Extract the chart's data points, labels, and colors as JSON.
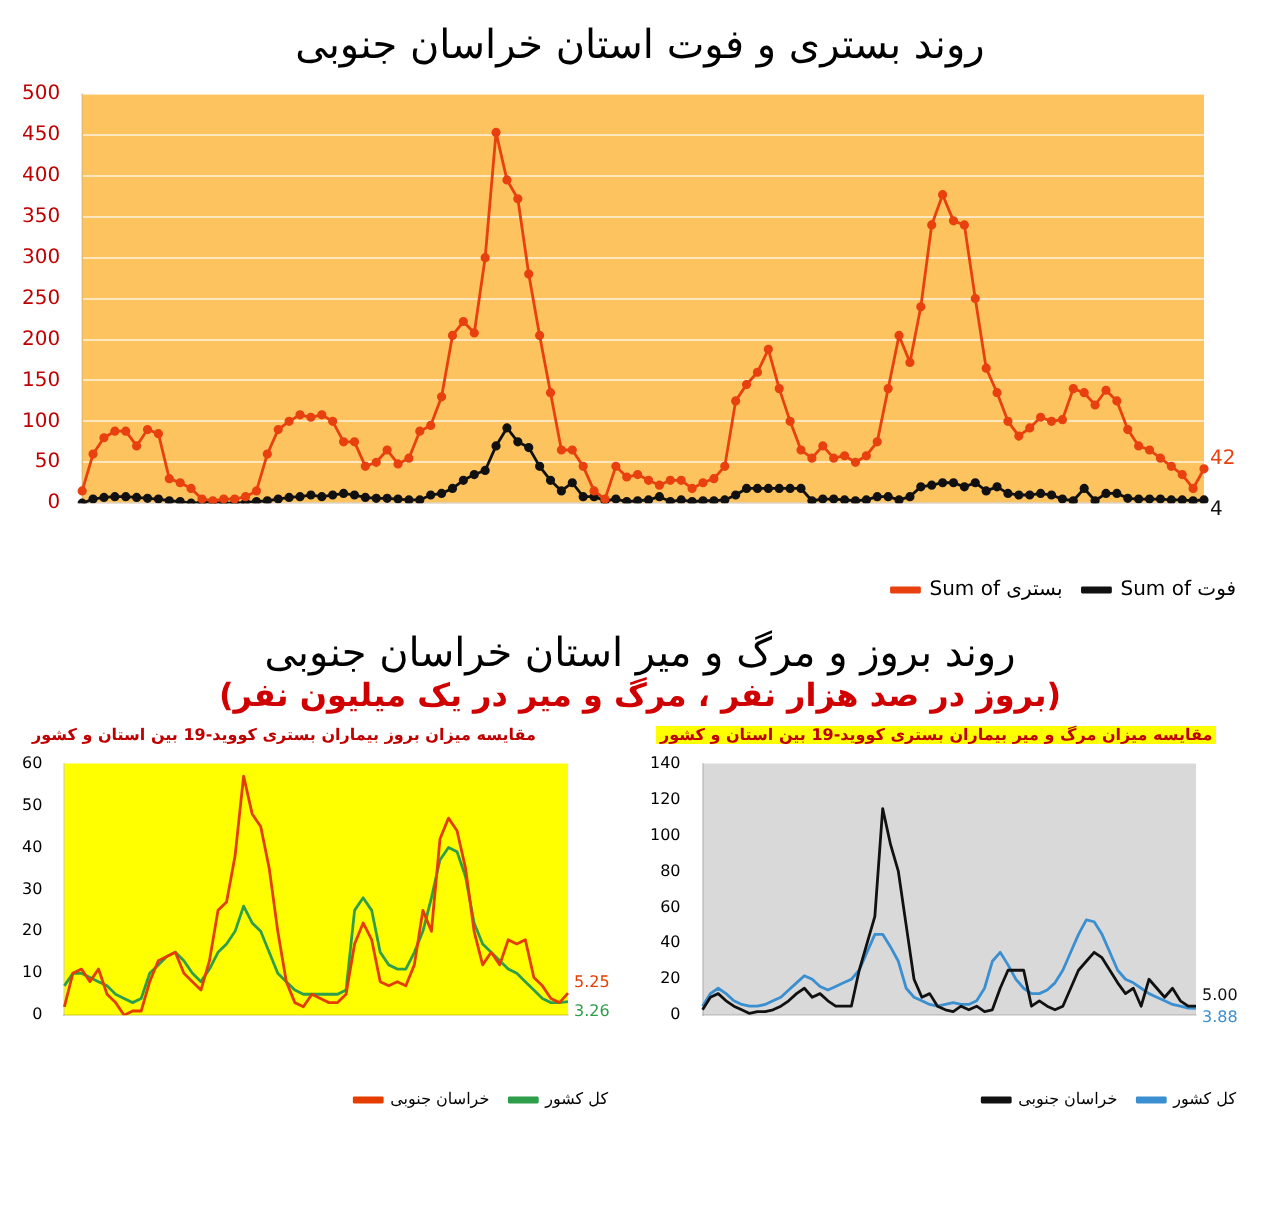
{
  "chart_data": [
    {
      "type": "line",
      "title": "روند بستری و فوت استان خراسان جنوبی",
      "categories": [
        null,
        null,
        null,
        null,
        null,
        null,
        null,
        null,
        null,
        null,
        null,
        null,
        null,
        null,
        null,
        null,
        null,
        null,
        null,
        null,
        null,
        null,
        null,
        null,
        null,
        null,
        null,
        null,
        null,
        null,
        null,
        null,
        null,
        null,
        null,
        null,
        null,
        null,
        null,
        null,
        null,
        null,
        null,
        null,
        null,
        null,
        null,
        null,
        null,
        null,
        null,
        null,
        null,
        null,
        null,
        null,
        null,
        null,
        null,
        null,
        null,
        null,
        null,
        null,
        null,
        null,
        null,
        null,
        null,
        null,
        null,
        null,
        null,
        null,
        null,
        null,
        null,
        null,
        null,
        null,
        null,
        null,
        null,
        null,
        null,
        null,
        null,
        null,
        null,
        null,
        null,
        null,
        null,
        null,
        null,
        null,
        null,
        null,
        null,
        null,
        null,
        null,
        null,
        null
      ],
      "series": [
        {
          "name": "Sum of بستری",
          "color": "#e8400f",
          "values": [
            15,
            60,
            80,
            88,
            88,
            70,
            90,
            85,
            30,
            25,
            18,
            5,
            3,
            5,
            5,
            8,
            15,
            60,
            90,
            100,
            108,
            105,
            108,
            100,
            75,
            75,
            45,
            50,
            65,
            48,
            55,
            88,
            95,
            130,
            205,
            222,
            208,
            300,
            453,
            395,
            372,
            280,
            205,
            135,
            65,
            65,
            45,
            15,
            5,
            45,
            32,
            35,
            28,
            22,
            28,
            28,
            18,
            25,
            30,
            45,
            125,
            145,
            160,
            188,
            140,
            100,
            65,
            55,
            70,
            55,
            58,
            50,
            58,
            75,
            140,
            205,
            172,
            240,
            340,
            377,
            345,
            340,
            250,
            165,
            135,
            100,
            82,
            92,
            105,
            100,
            102,
            140,
            135,
            120,
            138,
            125,
            90,
            70,
            65,
            55,
            45,
            35,
            18,
            42
          ],
          "value_labels": [
            null,
            null,
            null,
            null,
            null,
            null,
            null,
            null,
            null,
            null,
            null,
            null,
            null,
            null,
            null,
            null,
            null,
            null,
            null,
            null,
            null,
            null,
            null,
            null,
            null,
            null,
            null,
            null,
            null,
            null,
            null,
            null,
            null,
            null,
            null,
            null,
            null,
            null,
            null,
            null,
            null,
            null,
            null,
            null,
            null,
            null,
            null,
            null,
            null,
            null,
            null,
            null,
            null,
            null,
            null,
            null,
            null,
            null,
            null,
            null,
            null,
            null,
            null,
            null,
            null,
            null,
            null,
            null,
            null,
            null,
            null,
            null,
            null,
            null,
            null,
            null,
            null,
            null,
            null,
            null,
            null,
            null,
            null,
            null,
            null,
            null,
            null,
            null,
            null,
            null,
            null,
            null,
            null,
            null,
            null,
            null,
            null,
            null,
            null,
            null,
            null,
            null,
            null,
            "42"
          ]
        },
        {
          "name": "Sum of فوت",
          "color": "#111111",
          "values": [
            0,
            5,
            7,
            8,
            8,
            7,
            6,
            5,
            3,
            2,
            0,
            1,
            1,
            0,
            0,
            1,
            2,
            3,
            5,
            7,
            8,
            10,
            8,
            10,
            12,
            10,
            7,
            6,
            6,
            5,
            4,
            4,
            10,
            12,
            18,
            28,
            35,
            40,
            70,
            92,
            75,
            68,
            45,
            28,
            15,
            25,
            8,
            8,
            3,
            5,
            2,
            3,
            4,
            8,
            2,
            4,
            2,
            3,
            3,
            4,
            10,
            18,
            18,
            18,
            18,
            18,
            18,
            3,
            5,
            5,
            4,
            3,
            4,
            8,
            8,
            4,
            8,
            20,
            22,
            25,
            25,
            20,
            25,
            15,
            20,
            12,
            10,
            10,
            12,
            10,
            5,
            3,
            18,
            3,
            12,
            12,
            6,
            5,
            5,
            5,
            4,
            4,
            3,
            4
          ],
          "value_labels": [
            null,
            null,
            null,
            null,
            null,
            null,
            null,
            null,
            null,
            null,
            null,
            null,
            null,
            null,
            null,
            null,
            null,
            null,
            null,
            null,
            null,
            null,
            null,
            null,
            null,
            null,
            null,
            null,
            null,
            null,
            null,
            null,
            null,
            null,
            null,
            null,
            null,
            null,
            null,
            null,
            null,
            null,
            null,
            null,
            null,
            null,
            null,
            null,
            null,
            null,
            null,
            null,
            null,
            null,
            null,
            null,
            null,
            null,
            null,
            null,
            null,
            null,
            null,
            null,
            null,
            null,
            null,
            null,
            null,
            null,
            null,
            null,
            null,
            null,
            null,
            null,
            null,
            null,
            null,
            null,
            null,
            null,
            null,
            null,
            null,
            null,
            null,
            null,
            null,
            null,
            null,
            null,
            null,
            null,
            null,
            null,
            null,
            null,
            null,
            null,
            null,
            null,
            null,
            "4"
          ]
        }
      ],
      "ylim": [
        0,
        500
      ],
      "yticks": [
        0,
        50,
        100,
        150,
        200,
        250,
        300,
        350,
        400,
        450,
        500
      ],
      "grid": "y",
      "legend": "bottom right",
      "marker": "circle"
    },
    {
      "type": "other",
      "title": "روند بروز و مرگ و میر استان خراسان جنوبی",
      "subtitle": "(بروز در صد هزار نفر ، مرگ و میر در یک میلیون نفر)"
    },
    {
      "type": "line",
      "title": "مقایسه میزان بروز بیماران بستری کووید-19 بین استان و کشور",
      "categories": [
        null,
        null,
        null,
        null,
        null,
        null,
        null,
        null,
        null,
        null,
        null,
        null,
        null,
        null,
        null,
        null,
        null,
        null,
        null,
        null,
        null,
        null,
        null,
        null,
        null,
        null,
        null,
        null,
        null,
        null,
        null,
        null,
        null,
        null,
        null,
        null,
        null,
        null,
        null,
        null,
        null,
        null,
        null,
        null,
        null,
        null,
        null,
        null,
        null,
        null,
        null,
        null,
        null,
        null,
        null,
        null,
        null,
        null,
        null,
        null
      ],
      "series": [
        {
          "name": "خراسان جنوبی",
          "color": "#e53d00",
          "values": [
            2,
            10,
            11,
            8,
            11,
            5,
            3,
            0,
            1,
            1,
            8,
            13,
            14,
            15,
            10,
            8,
            6,
            13,
            25,
            27,
            38,
            57,
            48,
            45,
            35,
            20,
            8,
            3,
            2,
            5,
            4,
            3,
            3,
            5,
            17,
            22,
            18,
            8,
            7,
            8,
            7,
            12,
            25,
            20,
            42,
            47,
            44,
            35,
            20,
            12,
            15,
            12,
            18,
            17,
            18,
            9,
            7,
            4,
            3,
            5.25
          ],
          "value_labels": [
            null,
            null,
            null,
            null,
            null,
            null,
            null,
            null,
            null,
            null,
            null,
            null,
            null,
            null,
            null,
            null,
            null,
            null,
            null,
            null,
            null,
            null,
            null,
            null,
            null,
            null,
            null,
            null,
            null,
            null,
            null,
            null,
            null,
            null,
            null,
            null,
            null,
            null,
            null,
            null,
            null,
            null,
            null,
            null,
            null,
            null,
            null,
            null,
            null,
            null,
            null,
            null,
            null,
            null,
            null,
            null,
            null,
            null,
            null,
            "5.25"
          ]
        },
        {
          "name": "کل کشور",
          "color": "#2e9e4a",
          "values": [
            7,
            10,
            10,
            9,
            8,
            7,
            5,
            4,
            3,
            4,
            10,
            12,
            14,
            15,
            13,
            10,
            8,
            11,
            15,
            17,
            20,
            26,
            22,
            20,
            15,
            10,
            8,
            6,
            5,
            5,
            5,
            5,
            5,
            6,
            25,
            28,
            25,
            15,
            12,
            11,
            11,
            15,
            20,
            28,
            37,
            40,
            39,
            33,
            22,
            17,
            15,
            13,
            11,
            10,
            8,
            6,
            4,
            3,
            3,
            3.26
          ],
          "value_labels": [
            null,
            null,
            null,
            null,
            null,
            null,
            null,
            null,
            null,
            null,
            null,
            null,
            null,
            null,
            null,
            null,
            null,
            null,
            null,
            null,
            null,
            null,
            null,
            null,
            null,
            null,
            null,
            null,
            null,
            null,
            null,
            null,
            null,
            null,
            null,
            null,
            null,
            null,
            null,
            null,
            null,
            null,
            null,
            null,
            null,
            null,
            null,
            null,
            null,
            null,
            null,
            null,
            null,
            null,
            null,
            null,
            null,
            null,
            null,
            "3.26"
          ]
        }
      ],
      "ylim": [
        0,
        60
      ],
      "yticks": [
        0,
        10,
        20,
        30,
        40,
        50,
        60
      ],
      "legend": "bottom right"
    },
    {
      "type": "line",
      "title": "مقایسه میزان مرگ و میر بیماران بستری کووید-19 بین استان و کشور",
      "categories": [
        null,
        null,
        null,
        null,
        null,
        null,
        null,
        null,
        null,
        null,
        null,
        null,
        null,
        null,
        null,
        null,
        null,
        null,
        null,
        null,
        null,
        null,
        null,
        null,
        null,
        null,
        null,
        null,
        null,
        null,
        null,
        null,
        null,
        null,
        null,
        null,
        null,
        null,
        null,
        null,
        null,
        null,
        null,
        null,
        null,
        null,
        null,
        null,
        null,
        null,
        null,
        null,
        null,
        null,
        null,
        null,
        null,
        null,
        null,
        null,
        null,
        null,
        null,
        null
      ],
      "series": [
        {
          "name": "خراسان جنوبی",
          "color": "#111111",
          "values": [
            3,
            10,
            12,
            8,
            5,
            3,
            1,
            2,
            2,
            3,
            5,
            8,
            12,
            15,
            10,
            12,
            8,
            5,
            5,
            5,
            25,
            40,
            55,
            115,
            95,
            80,
            50,
            20,
            10,
            12,
            5,
            3,
            2,
            5,
            3,
            5,
            2,
            3,
            15,
            25,
            25,
            25,
            5,
            8,
            5,
            3,
            5,
            15,
            25,
            30,
            35,
            32,
            25,
            18,
            12,
            15,
            5,
            20,
            15,
            10,
            15,
            8,
            5,
            5
          ],
          "value_labels": [
            null,
            null,
            null,
            null,
            null,
            null,
            null,
            null,
            null,
            null,
            null,
            null,
            null,
            null,
            null,
            null,
            null,
            null,
            null,
            null,
            null,
            null,
            null,
            null,
            null,
            null,
            null,
            null,
            null,
            null,
            null,
            null,
            null,
            null,
            null,
            null,
            null,
            null,
            null,
            null,
            null,
            null,
            null,
            null,
            null,
            null,
            null,
            null,
            null,
            null,
            null,
            null,
            null,
            null,
            null,
            null,
            null,
            null,
            null,
            null,
            null,
            null,
            null,
            "5.00"
          ]
        },
        {
          "name": "کل کشور",
          "color": "#3a8fd0",
          "values": [
            5,
            12,
            15,
            12,
            8,
            6,
            5,
            5,
            6,
            8,
            10,
            14,
            18,
            22,
            20,
            16,
            14,
            16,
            18,
            20,
            25,
            35,
            45,
            45,
            38,
            30,
            15,
            10,
            8,
            6,
            5,
            6,
            7,
            6,
            6,
            8,
            15,
            30,
            35,
            28,
            20,
            15,
            12,
            12,
            14,
            18,
            25,
            35,
            45,
            53,
            52,
            45,
            35,
            25,
            20,
            18,
            15,
            12,
            10,
            8,
            6,
            5,
            4,
            3.88
          ],
          "value_labels": [
            null,
            null,
            null,
            null,
            null,
            null,
            null,
            null,
            null,
            null,
            null,
            null,
            null,
            null,
            null,
            null,
            null,
            null,
            null,
            null,
            null,
            null,
            null,
            null,
            null,
            null,
            null,
            null,
            null,
            null,
            null,
            null,
            null,
            null,
            null,
            null,
            null,
            null,
            null,
            null,
            null,
            null,
            null,
            null,
            null,
            null,
            null,
            null,
            null,
            null,
            null,
            null,
            null,
            null,
            null,
            null,
            null,
            null,
            null,
            null,
            null,
            null,
            null,
            "3.88"
          ]
        }
      ],
      "ylim": [
        0,
        140
      ],
      "yticks": [
        0,
        20,
        40,
        60,
        80,
        100,
        120,
        140
      ],
      "legend": "bottom right"
    }
  ]
}
